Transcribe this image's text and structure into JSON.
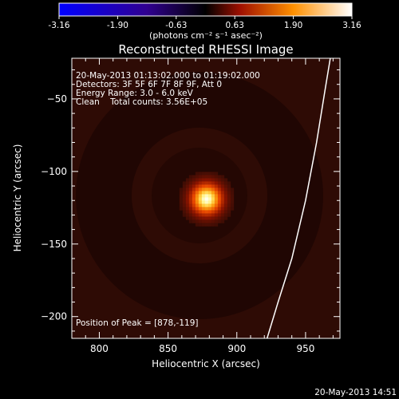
{
  "chart_data": {
    "type": "heatmap",
    "title": "Reconstructed RHESSI Image",
    "xlabel": "Heliocentric X (arcsec)",
    "ylabel": "Heliocentric Y (arcsec)",
    "xlim": [
      780,
      975
    ],
    "ylim": [
      -215,
      -22
    ],
    "x_ticks": [
      800,
      850,
      900,
      950
    ],
    "y_ticks": [
      -50,
      -100,
      -150,
      -200
    ],
    "colorbar": {
      "min": -3.16,
      "max": 3.16,
      "ticks": [
        "-3.16",
        "-1.90",
        "-0.63",
        "0.63",
        "1.90",
        "3.16"
      ],
      "label": "(photons cm⁻² s⁻¹ asec⁻²)",
      "colors": [
        "#0000ff",
        "#200050",
        "#000000",
        "#a01000",
        "#ff9000",
        "#ffffff"
      ]
    },
    "info_lines": [
      "20-May-2013 01:13:02.000 to 01:19:02.000",
      "Detectors: 3F 5F 6F 7F 8F 9F, Att 0",
      "Energy Range: 3.0 - 6.0 keV",
      "Clean    Total counts: 3.56E+05"
    ],
    "peak_label": "Position of Peak = [878,-119]",
    "peak": {
      "x": 878,
      "y": -119,
      "value": 3.16
    },
    "limb_curve": [
      [
        922,
        -215
      ],
      [
        930,
        -190
      ],
      [
        940,
        -160
      ],
      [
        950,
        -120
      ],
      [
        958,
        -80
      ],
      [
        964,
        -45
      ],
      [
        968,
        -22
      ]
    ],
    "timestamp": "20-May-2013 14:51"
  }
}
